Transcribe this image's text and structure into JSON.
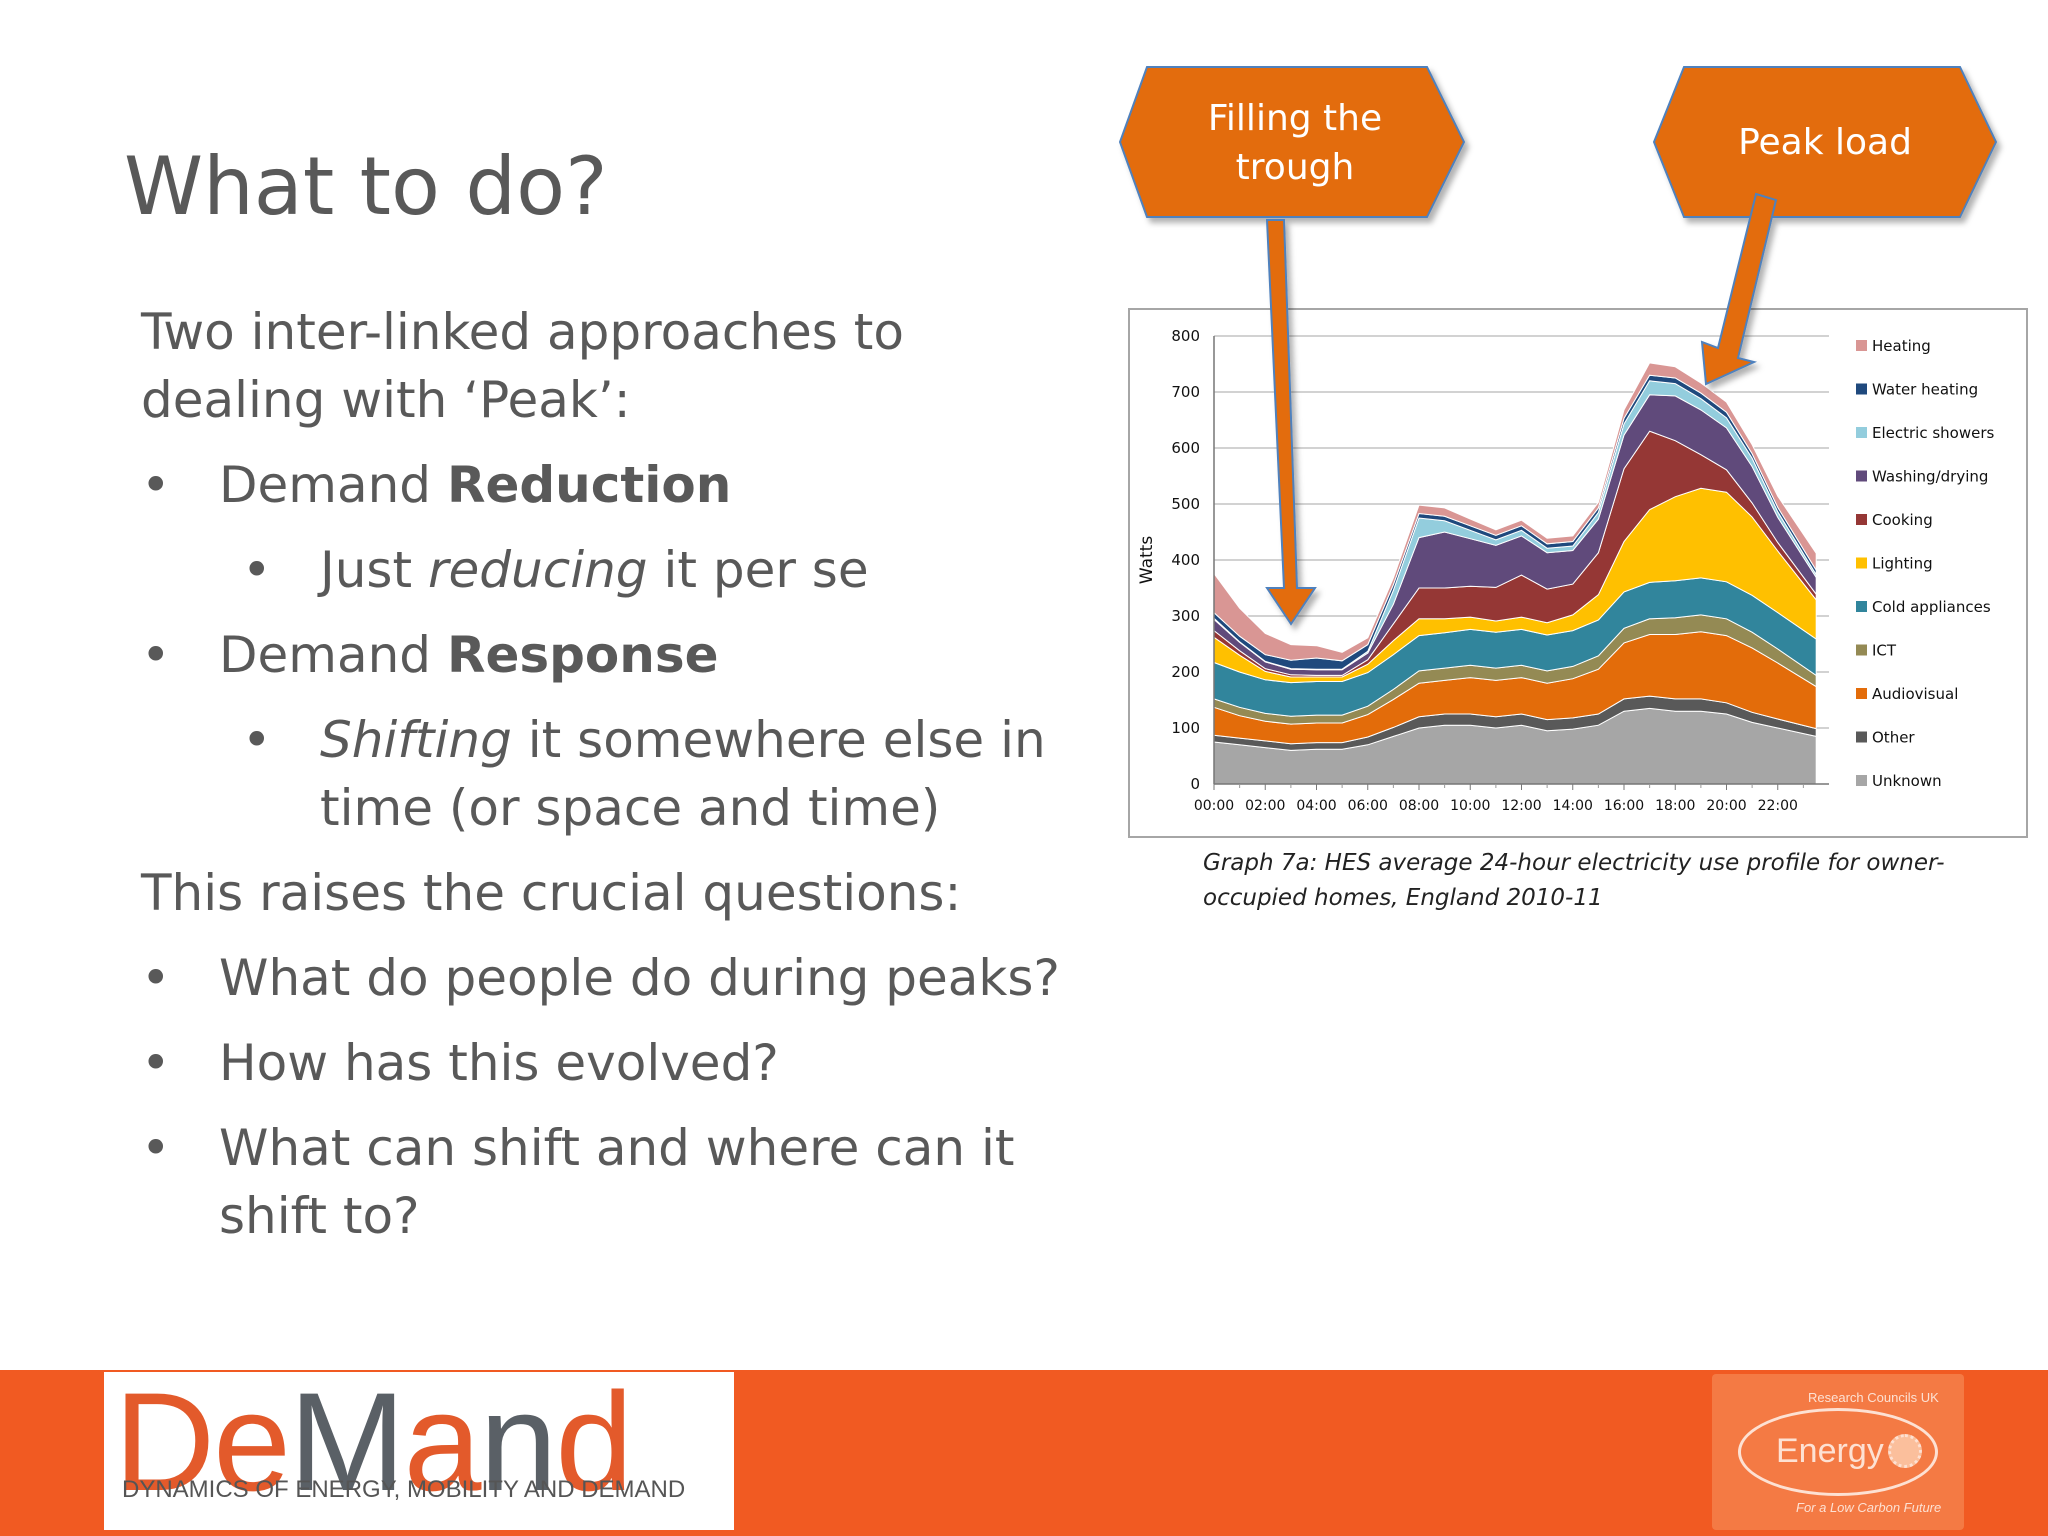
{
  "slide": {
    "title": "What to do?",
    "intro": "Two inter-linked approaches to dealing with ‘Peak’:",
    "bullet1_pre": "Demand ",
    "bullet1_bold": "Reduction",
    "sub1_pre": "Just ",
    "sub1_italic": "reducing",
    "sub1_post": " it per se",
    "bullet2_pre": "Demand ",
    "bullet2_bold": "Response",
    "sub2_italic": "Shifting",
    "sub2_post": " it somewhere else in time (or space and time)",
    "questions_intro": "This raises the crucial questions:",
    "q1": "What do people do during peaks?",
    "q2": "How has this evolved?",
    "q3": "What can shift and where can it shift to?"
  },
  "callouts": {
    "trough": "Filling the trough",
    "peak": "Peak load",
    "color": "#e36c0a"
  },
  "caption": "Graph 7a: HES average 24-hour electricity use profile for owner-occupied homes, England 2010-11",
  "footer": {
    "logo_letters": [
      "D",
      "e",
      "M",
      "a",
      "n",
      "d"
    ],
    "logo_tagline": "DYNAMICS OF ENERGY, MOBILITY AND DEMAND",
    "energy_word": "Energy",
    "energy_top": "Research Councils UK",
    "energy_bottom": "For a Low Carbon Future",
    "bar_color": "#f15a22"
  },
  "chart_data": {
    "type": "area",
    "ylabel": "Watts",
    "xlabel": "",
    "ylim": [
      0,
      800
    ],
    "yticks": [
      "0",
      "100",
      "200",
      "300",
      "400",
      "500",
      "600",
      "700",
      "800"
    ],
    "xticks": [
      "00:00",
      "02:00",
      "04:00",
      "06:00",
      "08:00",
      "10:00",
      "12:00",
      "14:00",
      "16:00",
      "18:00",
      "20:00",
      "22:00"
    ],
    "x_hours": [
      0,
      1,
      2,
      3,
      4,
      5,
      6,
      7,
      8,
      9,
      10,
      11,
      12,
      13,
      14,
      15,
      16,
      17,
      18,
      19,
      20,
      21,
      22,
      23.5
    ],
    "stack_order_bottom_to_top": [
      "Unknown",
      "Other",
      "Audiovisual",
      "ICT",
      "Cold appliances",
      "Lighting",
      "Cooking",
      "Washing/drying",
      "Electric showers",
      "Water heating",
      "Heating"
    ],
    "legend": [
      "Heating",
      "Water heating",
      "Electric showers",
      "Washing/drying",
      "Cooking",
      "Lighting",
      "Cold appliances",
      "ICT",
      "Audiovisual",
      "Other",
      "Unknown"
    ],
    "series": [
      {
        "name": "Unknown",
        "color": "#a6a6a6",
        "values": [
          75,
          70,
          65,
          60,
          62,
          62,
          70,
          85,
          100,
          105,
          105,
          100,
          105,
          95,
          98,
          105,
          130,
          135,
          130,
          130,
          125,
          110,
          100,
          85
        ]
      },
      {
        "name": "Other",
        "color": "#595959",
        "values": [
          12,
          12,
          12,
          12,
          12,
          12,
          14,
          16,
          20,
          20,
          20,
          20,
          20,
          20,
          20,
          20,
          22,
          22,
          22,
          22,
          20,
          18,
          16,
          14
        ]
      },
      {
        "name": "Audiovisual",
        "color": "#e36c0a",
        "values": [
          50,
          40,
          35,
          35,
          35,
          35,
          40,
          50,
          60,
          60,
          65,
          65,
          65,
          65,
          70,
          80,
          100,
          110,
          115,
          120,
          120,
          115,
          100,
          75
        ]
      },
      {
        "name": "ICT",
        "color": "#948a54",
        "values": [
          15,
          15,
          14,
          14,
          14,
          14,
          15,
          18,
          22,
          22,
          22,
          22,
          22,
          22,
          22,
          24,
          26,
          28,
          30,
          30,
          30,
          28,
          25,
          20
        ]
      },
      {
        "name": "Cold appliances",
        "color": "#31859c",
        "values": [
          65,
          63,
          60,
          60,
          60,
          60,
          60,
          62,
          63,
          63,
          64,
          64,
          64,
          64,
          64,
          64,
          65,
          65,
          66,
          66,
          66,
          66,
          65,
          65
        ]
      },
      {
        "name": "Lighting",
        "color": "#ffc000",
        "values": [
          45,
          30,
          15,
          10,
          8,
          8,
          15,
          25,
          30,
          25,
          22,
          20,
          22,
          22,
          28,
          45,
          90,
          130,
          150,
          160,
          160,
          140,
          110,
          70
        ]
      },
      {
        "name": "Cooking",
        "color": "#953735",
        "values": [
          12,
          8,
          5,
          4,
          3,
          3,
          8,
          30,
          55,
          55,
          55,
          60,
          75,
          60,
          55,
          75,
          130,
          140,
          100,
          60,
          40,
          25,
          15,
          10
        ]
      },
      {
        "name": "Washing/drying",
        "color": "#604a7b",
        "values": [
          20,
          15,
          12,
          10,
          10,
          10,
          12,
          35,
          90,
          100,
          85,
          75,
          70,
          65,
          60,
          60,
          60,
          65,
          80,
          80,
          75,
          65,
          45,
          30
        ]
      },
      {
        "name": "Electric showers",
        "color": "#93cddd",
        "values": [
          2,
          1,
          1,
          1,
          1,
          1,
          3,
          25,
          35,
          20,
          15,
          10,
          10,
          8,
          8,
          12,
          20,
          25,
          22,
          20,
          18,
          15,
          10,
          5
        ]
      },
      {
        "name": "Water heating",
        "color": "#1f497d",
        "values": [
          10,
          10,
          12,
          15,
          20,
          15,
          12,
          10,
          8,
          8,
          8,
          8,
          8,
          8,
          8,
          8,
          10,
          10,
          10,
          10,
          10,
          8,
          8,
          8
        ]
      },
      {
        "name": "Heating",
        "color": "#d99694",
        "values": [
          70,
          50,
          38,
          28,
          22,
          15,
          12,
          12,
          15,
          15,
          12,
          10,
          10,
          10,
          10,
          10,
          15,
          22,
          20,
          18,
          18,
          16,
          20,
          30
        ]
      }
    ]
  }
}
